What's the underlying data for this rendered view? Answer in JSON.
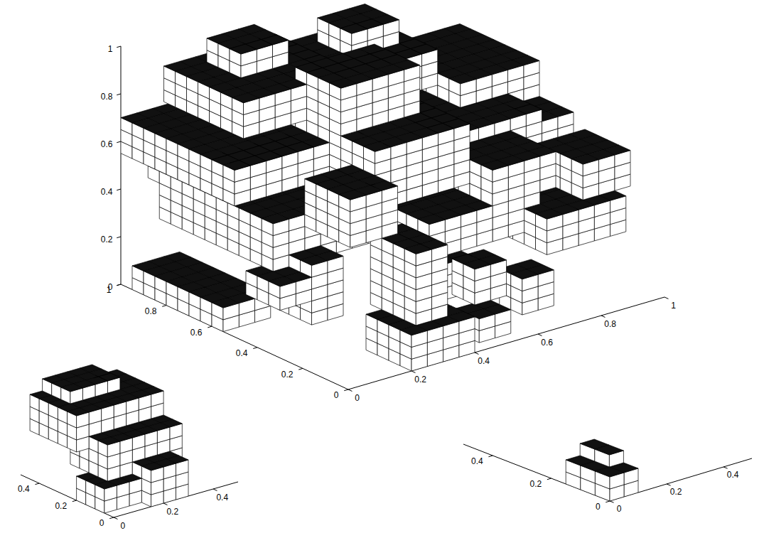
{
  "chart_data": [
    {
      "type": "voxel",
      "cell": 0.05,
      "xlim": [
        0,
        1
      ],
      "ylim": [
        0,
        1
      ],
      "zlim": [
        0,
        1
      ],
      "xticks": [
        0,
        0.2,
        0.4,
        0.6,
        0.8,
        1
      ],
      "yticks": [
        0,
        0.2,
        0.4,
        0.6,
        0.8,
        1
      ],
      "zticks": [
        0,
        0.2,
        0.4,
        0.6,
        0.8,
        1
      ],
      "boxes": [
        [
          0.0,
          0.55,
          0.0,
          0.15,
          0.95,
          0.1
        ],
        [
          0.2,
          0.0,
          0.0,
          0.4,
          0.2,
          0.15
        ],
        [
          0.25,
          0.05,
          0.15,
          0.35,
          0.25,
          0.45
        ],
        [
          0.45,
          0.05,
          0.0,
          0.55,
          0.15,
          0.1
        ],
        [
          0.1,
          0.3,
          0.1,
          0.2,
          0.45,
          0.35
        ],
        [
          0.05,
          0.4,
          0.3,
          0.45,
          0.9,
          0.5
        ],
        [
          0.4,
          0.2,
          0.3,
          0.75,
          0.55,
          0.45
        ],
        [
          0.7,
          0.1,
          0.25,
          0.95,
          0.4,
          0.4
        ],
        [
          0.0,
          0.5,
          0.55,
          0.3,
          1.0,
          0.7
        ],
        [
          0.3,
          0.3,
          0.5,
          0.6,
          0.7,
          0.75
        ],
        [
          0.55,
          0.4,
          0.45,
          0.9,
          0.75,
          0.65
        ],
        [
          0.1,
          0.6,
          0.75,
          0.45,
          0.95,
          0.9
        ],
        [
          0.45,
          0.65,
          0.7,
          0.75,
          0.95,
          0.85
        ],
        [
          0.75,
          0.55,
          0.6,
          1.0,
          0.9,
          0.75
        ],
        [
          0.3,
          0.45,
          0.75,
          0.55,
          0.65,
          0.95
        ],
        [
          0.6,
          0.2,
          0.45,
          0.8,
          0.4,
          0.6
        ],
        [
          0.15,
          0.2,
          0.45,
          0.3,
          0.4,
          0.65
        ],
        [
          0.35,
          0.15,
          0.15,
          0.5,
          0.3,
          0.3
        ],
        [
          0.55,
          0.0,
          0.1,
          0.65,
          0.1,
          0.25
        ],
        [
          0.85,
          0.15,
          0.4,
          1.0,
          0.35,
          0.55
        ],
        [
          0.2,
          0.75,
          0.9,
          0.35,
          0.9,
          1.0
        ],
        [
          0.55,
          0.75,
          0.85,
          0.7,
          0.9,
          0.95
        ],
        [
          0.05,
          0.8,
          0.45,
          0.2,
          0.95,
          0.6
        ],
        [
          0.65,
          0.6,
          0.4,
          0.8,
          0.75,
          0.55
        ],
        [
          0.4,
          0.0,
          0.2,
          0.5,
          0.1,
          0.35
        ],
        [
          0.9,
          0.4,
          0.45,
          1.0,
          0.6,
          0.6
        ],
        [
          0.0,
          0.3,
          0.2,
          0.1,
          0.45,
          0.3
        ],
        [
          0.35,
          0.55,
          0.4,
          0.5,
          0.7,
          0.5
        ]
      ]
    },
    {
      "type": "voxel",
      "cell": 0.05,
      "xlim": [
        0,
        0.5
      ],
      "ylim": [
        0,
        0.5
      ],
      "xticks": [
        0,
        0.2,
        0.4
      ],
      "yticks": [
        0,
        0.2,
        0.4
      ],
      "boxes": [
        [
          0.0,
          0.05,
          0.0,
          0.2,
          0.2,
          0.1
        ],
        [
          0.05,
          0.1,
          0.1,
          0.2,
          0.3,
          0.25
        ],
        [
          0.0,
          0.2,
          0.2,
          0.35,
          0.45,
          0.35
        ],
        [
          0.15,
          0.0,
          0.0,
          0.3,
          0.1,
          0.15
        ],
        [
          0.2,
          0.1,
          0.1,
          0.35,
          0.3,
          0.25
        ],
        [
          0.05,
          0.3,
          0.3,
          0.25,
          0.45,
          0.4
        ]
      ]
    },
    {
      "type": "voxel",
      "cell": 0.05,
      "xlim": [
        0,
        0.5
      ],
      "ylim": [
        0,
        0.5
      ],
      "xticks": [
        0,
        0.2,
        0.4
      ],
      "yticks": [
        0,
        0.2,
        0.4
      ],
      "boxes": [
        [
          0.0,
          0.0,
          0.0,
          0.1,
          0.15,
          0.1
        ],
        [
          0.05,
          0.05,
          0.1,
          0.1,
          0.15,
          0.15
        ]
      ]
    }
  ]
}
